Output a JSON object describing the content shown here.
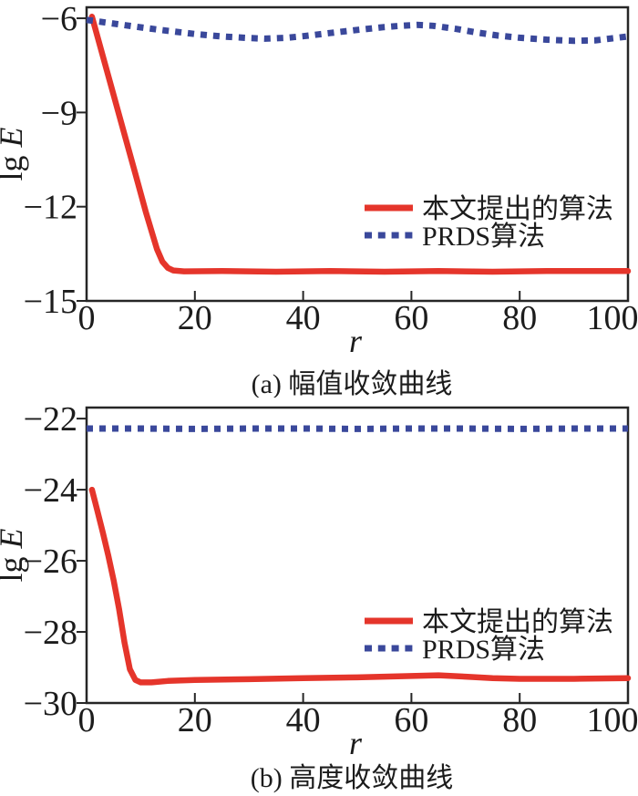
{
  "page": {
    "background": "#ffffff",
    "axis_color": "#262626",
    "text_color": "#1c1c1c"
  },
  "chart_data": [
    {
      "type": "line",
      "panel": "a",
      "title": "(a) 幅值收敛曲线",
      "xlabel": "r",
      "ylabel_roman": "lg",
      "ylabel_italic": "E",
      "xlim": [
        0,
        100
      ],
      "ylim": [
        -15,
        -5.65
      ],
      "grid": false,
      "legend_position": "right-middle",
      "xticks": {
        "values": [
          0,
          20,
          40,
          60,
          80,
          100
        ],
        "labels": [
          "0",
          "20",
          "40",
          "60",
          "80",
          "100"
        ]
      },
      "yticks": {
        "values": [
          -6,
          -9,
          -12,
          -15
        ],
        "labels": [
          "−6",
          "−9",
          "−12",
          "−15"
        ]
      },
      "series": [
        {
          "name": "本文提出的算法",
          "style": "solid",
          "color": "#e5352b",
          "points": [
            [
              1,
              -5.95
            ],
            [
              3,
              -7.2
            ],
            [
              5,
              -8.45
            ],
            [
              7,
              -9.7
            ],
            [
              9,
              -10.95
            ],
            [
              11,
              -12.2
            ],
            [
              13,
              -13.35
            ],
            [
              14,
              -13.75
            ],
            [
              15,
              -13.95
            ],
            [
              16,
              -14.03
            ],
            [
              18,
              -14.06
            ],
            [
              25,
              -14.05
            ],
            [
              35,
              -14.07
            ],
            [
              45,
              -14.05
            ],
            [
              55,
              -14.07
            ],
            [
              65,
              -14.05
            ],
            [
              75,
              -14.07
            ],
            [
              85,
              -14.05
            ],
            [
              100,
              -14.05
            ]
          ]
        },
        {
          "name": "PRDS算法",
          "style": "dotted",
          "color": "#3a489b",
          "points": [
            [
              0,
              -6.05
            ],
            [
              5,
              -6.17
            ],
            [
              10,
              -6.29
            ],
            [
              15,
              -6.4
            ],
            [
              20,
              -6.5
            ],
            [
              25,
              -6.58
            ],
            [
              30,
              -6.63
            ],
            [
              33,
              -6.65
            ],
            [
              37,
              -6.62
            ],
            [
              40,
              -6.57
            ],
            [
              45,
              -6.47
            ],
            [
              50,
              -6.37
            ],
            [
              55,
              -6.28
            ],
            [
              58,
              -6.24
            ],
            [
              61,
              -6.21
            ],
            [
              64,
              -6.24
            ],
            [
              68,
              -6.33
            ],
            [
              72,
              -6.45
            ],
            [
              76,
              -6.55
            ],
            [
              80,
              -6.62
            ],
            [
              85,
              -6.68
            ],
            [
              90,
              -6.72
            ],
            [
              94,
              -6.7
            ],
            [
              97,
              -6.64
            ],
            [
              100,
              -6.58
            ]
          ]
        }
      ]
    },
    {
      "type": "line",
      "panel": "b",
      "title": "(b) 高度收敛曲线",
      "xlabel": "r",
      "ylabel_roman": "lg",
      "ylabel_italic": "E",
      "xlim": [
        0,
        100
      ],
      "ylim": [
        -30,
        -21.69
      ],
      "grid": false,
      "legend_position": "right-middle",
      "xticks": {
        "values": [
          0,
          20,
          40,
          60,
          80,
          100
        ],
        "labels": [
          "0",
          "20",
          "40",
          "60",
          "80",
          "100"
        ]
      },
      "yticks": {
        "values": [
          -22,
          -24,
          -26,
          -28,
          -30
        ],
        "labels": [
          "−22",
          "−24",
          "−26",
          "−28",
          "−30"
        ]
      },
      "series": [
        {
          "name": "本文提出的算法",
          "style": "solid",
          "color": "#e5352b",
          "points": [
            [
              1,
              -24
            ],
            [
              2,
              -24.6
            ],
            [
              3,
              -25.2
            ],
            [
              4,
              -25.85
            ],
            [
              5,
              -26.55
            ],
            [
              6,
              -27.35
            ],
            [
              7,
              -28.3
            ],
            [
              8,
              -29.05
            ],
            [
              9,
              -29.35
            ],
            [
              10,
              -29.42
            ],
            [
              12,
              -29.42
            ],
            [
              15,
              -29.38
            ],
            [
              20,
              -29.35
            ],
            [
              30,
              -29.33
            ],
            [
              40,
              -29.3
            ],
            [
              50,
              -29.28
            ],
            [
              60,
              -29.24
            ],
            [
              65,
              -29.22
            ],
            [
              70,
              -29.26
            ],
            [
              75,
              -29.3
            ],
            [
              80,
              -29.32
            ],
            [
              90,
              -29.32
            ],
            [
              100,
              -29.3
            ]
          ]
        },
        {
          "name": "PRDS算法",
          "style": "dotted",
          "color": "#3a489b",
          "points": [
            [
              0,
              -22.28
            ],
            [
              10,
              -22.28
            ],
            [
              20,
              -22.29
            ],
            [
              30,
              -22.28
            ],
            [
              40,
              -22.28
            ],
            [
              50,
              -22.29
            ],
            [
              60,
              -22.28
            ],
            [
              70,
              -22.28
            ],
            [
              80,
              -22.29
            ],
            [
              90,
              -22.28
            ],
            [
              100,
              -22.28
            ]
          ]
        }
      ]
    }
  ]
}
